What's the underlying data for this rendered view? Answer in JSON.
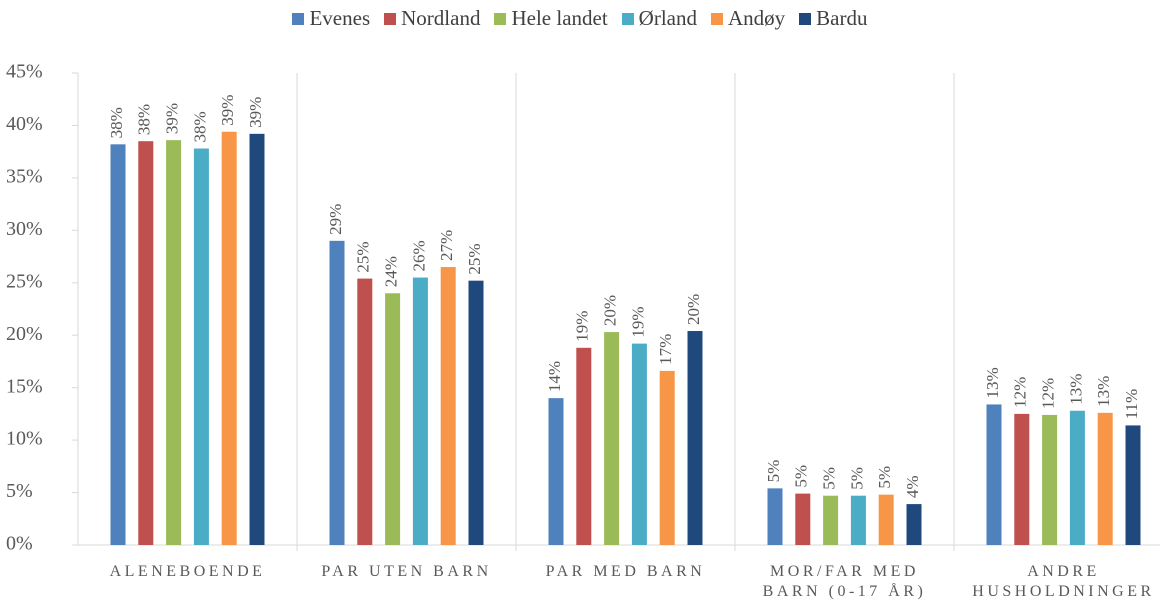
{
  "chart_data": {
    "type": "bar",
    "categories": [
      "ALENEBOENDE",
      "PAR UTEN BARN",
      "PAR MED BARN",
      "MOR/FAR MED BARN (0-17 ÅR)",
      "ANDRE HUSHOLDNINGER"
    ],
    "series": [
      {
        "name": "Evenes",
        "color": "#4f81bd",
        "values": [
          38.2,
          29.0,
          14.0,
          5.4,
          13.4
        ],
        "value_labels": [
          "38%",
          "29%",
          "14%",
          "5%",
          "13%"
        ]
      },
      {
        "name": "Nordland",
        "color": "#c0504d",
        "values": [
          38.5,
          25.4,
          18.8,
          4.9,
          12.5
        ],
        "value_labels": [
          "38%",
          "25%",
          "19%",
          "5%",
          "12%"
        ]
      },
      {
        "name": "Hele landet",
        "color": "#9bbb59",
        "values": [
          38.6,
          24.0,
          20.3,
          4.7,
          12.4
        ],
        "value_labels": [
          "39%",
          "24%",
          "20%",
          "5%",
          "12%"
        ]
      },
      {
        "name": "Ørland",
        "color": "#4bacc6",
        "values": [
          37.8,
          25.5,
          19.2,
          4.7,
          12.8
        ],
        "value_labels": [
          "38%",
          "26%",
          "19%",
          "5%",
          "13%"
        ]
      },
      {
        "name": "Andøy",
        "color": "#f79646",
        "values": [
          39.4,
          26.5,
          16.6,
          4.8,
          12.6
        ],
        "value_labels": [
          "39%",
          "27%",
          "17%",
          "5%",
          "13%"
        ]
      },
      {
        "name": "Bardu",
        "color": "#1f497d",
        "values": [
          39.2,
          25.2,
          20.4,
          3.9,
          11.4
        ],
        "value_labels": [
          "39%",
          "25%",
          "20%",
          "4%",
          "11%"
        ]
      }
    ],
    "ylim": [
      0,
      45
    ],
    "yticks": [
      {
        "value": 0,
        "label": "0%"
      },
      {
        "value": 5,
        "label": "5%"
      },
      {
        "value": 10,
        "label": "10%"
      },
      {
        "value": 15,
        "label": "15%"
      },
      {
        "value": 20,
        "label": "20%"
      },
      {
        "value": 25,
        "label": "25%"
      },
      {
        "value": 30,
        "label": "30%"
      },
      {
        "value": 35,
        "label": "35%"
      },
      {
        "value": 40,
        "label": "40%"
      },
      {
        "value": 45,
        "label": "45%"
      }
    ],
    "legend": "top"
  }
}
